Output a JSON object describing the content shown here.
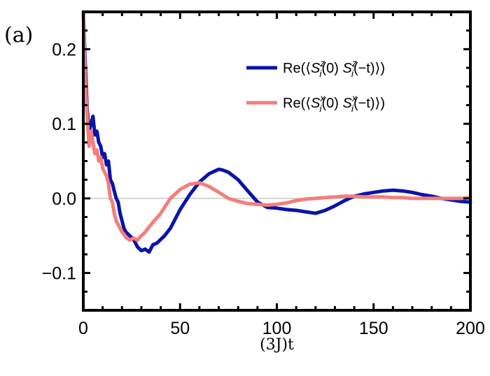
{
  "panel_label": "(a)",
  "chart_data": {
    "type": "line",
    "title": "",
    "xlabel": "(3J)t",
    "ylabel": "",
    "xlim": [
      0,
      200
    ],
    "ylim": [
      -0.15,
      0.25
    ],
    "x_ticks": [
      0,
      50,
      100,
      150,
      200
    ],
    "y_ticks": [
      0.2,
      0.1,
      0.0,
      -0.1
    ],
    "x_tick_labels": [
      "0",
      "50",
      "100",
      "150",
      "200"
    ],
    "y_tick_labels": [
      "0.2",
      "0.1",
      "0.0",
      "−0.1"
    ],
    "zero_line": true,
    "legend_position": "top-right",
    "series": [
      {
        "name": "Re(⟨S_i^z(0) S_i^z(−t)⟩)",
        "legend": {
          "pre": "Re(⟨",
          "s1": "S",
          "sup1": "z",
          "sub1": "i",
          "mid": "(0) ",
          "s2": "S",
          "sup2": "z",
          "sub2": "i",
          "post": "(−t)⟩)"
        },
        "color": "#0a14a8",
        "x": [
          0,
          1,
          2,
          3,
          4,
          5,
          6,
          7,
          8,
          9,
          10,
          11,
          12,
          13,
          14,
          15,
          16,
          17,
          18,
          19,
          20,
          21,
          22,
          24,
          26,
          28,
          30,
          32,
          34,
          36,
          38,
          40,
          42,
          45,
          50,
          55,
          60,
          65,
          70,
          72,
          75,
          80,
          85,
          90,
          95,
          100,
          105,
          110,
          115,
          120,
          125,
          130,
          135,
          140,
          145,
          150,
          155,
          160,
          165,
          170,
          175,
          180,
          185,
          190,
          195,
          200
        ],
        "values": [
          0.25,
          0.18,
          0.12,
          0.09,
          0.1,
          0.11,
          0.085,
          0.09,
          0.075,
          0.07,
          0.055,
          0.06,
          0.045,
          0.05,
          0.025,
          0.02,
          0.01,
          0.0,
          -0.005,
          -0.02,
          -0.03,
          -0.04,
          -0.045,
          -0.05,
          -0.055,
          -0.065,
          -0.07,
          -0.068,
          -0.072,
          -0.062,
          -0.06,
          -0.055,
          -0.05,
          -0.04,
          -0.015,
          0.005,
          0.022,
          0.033,
          0.039,
          0.038,
          0.035,
          0.025,
          0.01,
          -0.005,
          -0.012,
          -0.013,
          -0.015,
          -0.016,
          -0.018,
          -0.02,
          -0.016,
          -0.01,
          -0.003,
          0.003,
          0.006,
          0.008,
          0.01,
          0.011,
          0.01,
          0.008,
          0.005,
          0.003,
          0.0,
          -0.002,
          -0.004,
          -0.005
        ]
      },
      {
        "name": "Re(⟨S_i^x(0) S_i^x(−t)⟩)",
        "legend": {
          "pre": "Re(⟨",
          "s1": "S",
          "sup1": "x",
          "sub1": "i",
          "mid": "(0) ",
          "s2": "S",
          "sup2": "x",
          "sub2": "i",
          "post": "(−t)⟩)"
        },
        "color": "#f47e7a",
        "x": [
          0,
          1,
          2,
          3,
          4,
          5,
          6,
          7,
          8,
          9,
          10,
          11,
          12,
          13,
          14,
          15,
          16,
          17,
          18,
          19,
          20,
          21,
          22,
          24,
          26,
          28,
          30,
          32,
          35,
          40,
          45,
          50,
          55,
          60,
          65,
          70,
          75,
          80,
          85,
          90,
          95,
          100,
          105,
          110,
          115,
          120,
          125,
          130,
          135,
          140,
          145,
          150,
          155,
          160,
          165,
          170,
          175,
          180,
          185,
          190,
          195,
          200
        ],
        "values": [
          0.25,
          0.16,
          0.11,
          0.07,
          0.09,
          0.075,
          0.06,
          0.065,
          0.05,
          0.055,
          0.04,
          0.035,
          0.03,
          0.02,
          0.0,
          -0.005,
          -0.02,
          -0.03,
          -0.035,
          -0.04,
          -0.045,
          -0.048,
          -0.052,
          -0.056,
          -0.053,
          -0.056,
          -0.05,
          -0.045,
          -0.035,
          -0.02,
          0.0,
          0.012,
          0.019,
          0.021,
          0.016,
          0.008,
          0.0,
          -0.004,
          -0.007,
          -0.008,
          -0.009,
          -0.008,
          -0.006,
          -0.003,
          -0.001,
          0.0,
          0.001,
          0.002,
          0.003,
          0.003,
          0.002,
          0.002,
          0.002,
          0.001,
          0.001,
          0.0,
          0.0,
          0.0,
          0.0,
          0.0,
          0.0,
          0.001
        ]
      }
    ]
  }
}
